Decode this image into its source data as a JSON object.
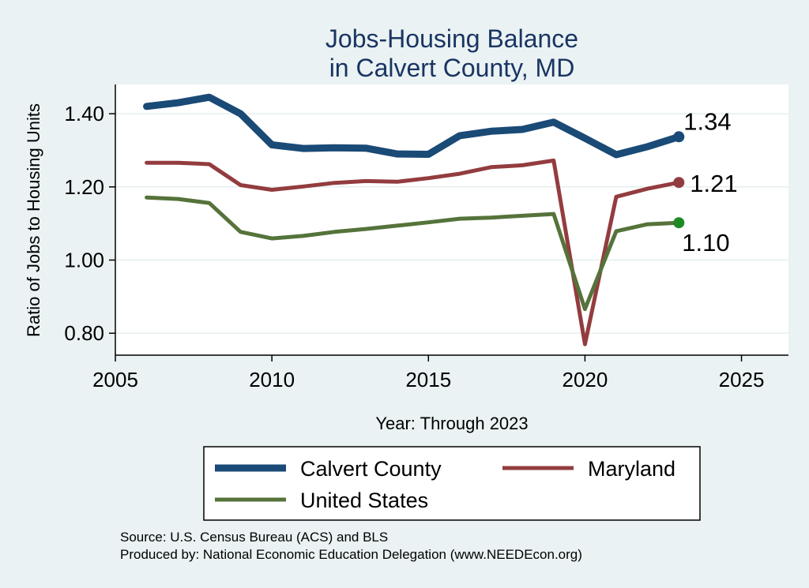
{
  "title_line1": "Jobs-Housing Balance",
  "title_line2": "in Calvert County, MD",
  "source_line1": "Source: U.S. Census Bureau (ACS) and BLS",
  "source_line2": "Produced by: National Economic Education Delegation (www.NEEDEcon.org)",
  "chart_data": {
    "type": "line",
    "ylabel": "Ratio of Jobs to Housing Units",
    "xlabel": "Year: Through 2023",
    "xlim": [
      2005,
      2026.5
    ],
    "ylim": [
      0.74,
      1.48
    ],
    "x_ticks": [
      2005,
      2010,
      2015,
      2020,
      2025
    ],
    "y_ticks": [
      0.8,
      1.0,
      1.2,
      1.4
    ],
    "y_tick_labels": [
      "0.80",
      "1.00",
      "1.20",
      "1.40"
    ],
    "grid": true,
    "legend_position": "bottom",
    "x": [
      2006,
      2007,
      2008,
      2009,
      2010,
      2011,
      2012,
      2013,
      2014,
      2015,
      2016,
      2017,
      2018,
      2019,
      2020,
      2021,
      2022,
      2023
    ],
    "series": [
      {
        "name": "Calvert County",
        "color": "#1a4a76",
        "values": [
          1.42,
          1.43,
          1.445,
          1.4,
          1.315,
          1.305,
          1.307,
          1.306,
          1.29,
          1.289,
          1.34,
          1.352,
          1.357,
          1.377,
          1.333,
          1.288,
          1.31,
          1.337
        ],
        "end_label": "1.34"
      },
      {
        "name": "Maryland",
        "color": "#933c3f",
        "values": [
          1.266,
          1.266,
          1.262,
          1.205,
          1.192,
          1.201,
          1.211,
          1.216,
          1.214,
          1.224,
          1.236,
          1.254,
          1.259,
          1.272,
          0.77,
          1.173,
          1.195,
          1.212
        ],
        "end_label": "1.21"
      },
      {
        "name": "United States",
        "color": "#55733a",
        "values": [
          1.171,
          1.167,
          1.156,
          1.077,
          1.059,
          1.066,
          1.077,
          1.085,
          1.094,
          1.103,
          1.113,
          1.116,
          1.121,
          1.126,
          0.866,
          1.079,
          1.098,
          1.102
        ],
        "end_label": "1.10"
      }
    ]
  }
}
